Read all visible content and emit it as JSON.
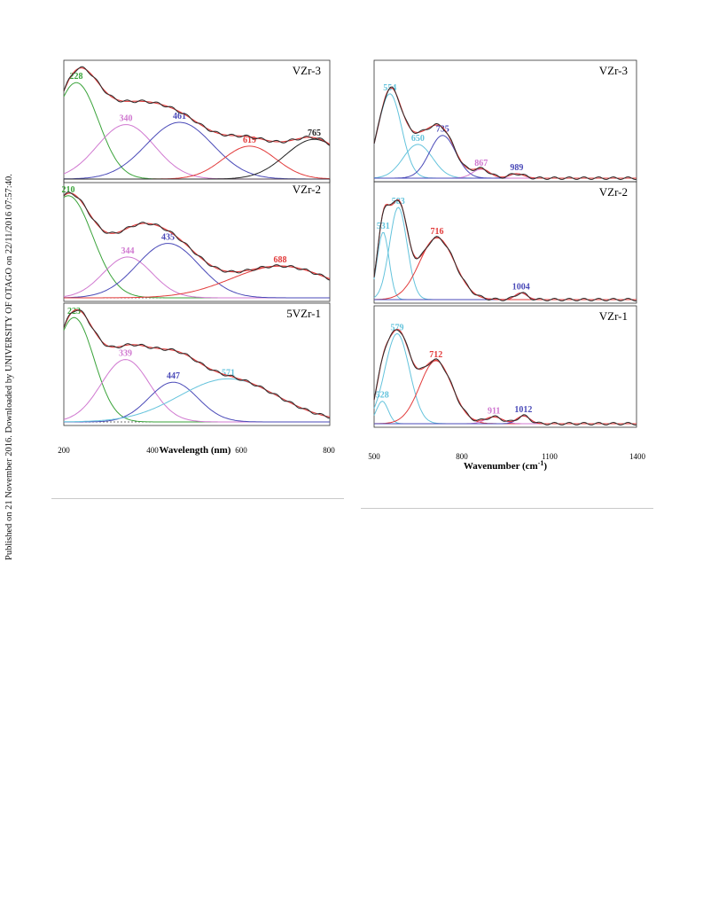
{
  "side_note": "Published on 21 November 2016. Downloaded by UNIVERSITY OF OTAGO on 22/11/2016 07:57:40.",
  "colors": {
    "data": "#2b2b2b",
    "fit": "#e23b3b",
    "green": "#3aa33a",
    "pink": "#d078d0",
    "blue": "#4a4ab8",
    "red": "#e23b3b",
    "black": "#222222",
    "cyan": "#64c3dc",
    "baseline": "#444444"
  },
  "left_panel": {
    "xlabel": "Wavelength (nm)",
    "x_ticks": [
      "200",
      "400",
      "600",
      "800"
    ],
    "x_range": [
      200,
      800
    ],
    "panels": [
      {
        "label": "VZr-3",
        "peaks": [
          {
            "center": 228,
            "label": "228",
            "color": "green",
            "amp": 0.85,
            "width": 50
          },
          {
            "center": 340,
            "label": "340",
            "color": "pink",
            "amp": 0.48,
            "width": 65
          },
          {
            "center": 461,
            "label": "461",
            "color": "blue",
            "amp": 0.5,
            "width": 75
          },
          {
            "center": 619,
            "label": "619",
            "color": "red",
            "amp": 0.29,
            "width": 60
          },
          {
            "center": 765,
            "label": "765",
            "color": "black",
            "amp": 0.35,
            "width": 65
          }
        ]
      },
      {
        "label": "VZr-2",
        "peaks": [
          {
            "center": 210,
            "label": "210",
            "color": "green",
            "amp": 0.9,
            "width": 55
          },
          {
            "center": 344,
            "label": "344",
            "color": "pink",
            "amp": 0.36,
            "width": 55
          },
          {
            "center": 435,
            "label": "435",
            "color": "blue",
            "amp": 0.48,
            "width": 70
          },
          {
            "center": 688,
            "label": "688",
            "color": "red",
            "amp": 0.28,
            "width": 110
          }
        ]
      },
      {
        "label": "5VZr-1",
        "peaks": [
          {
            "center": 223,
            "label": "223",
            "color": "green",
            "amp": 0.92,
            "width": 45
          },
          {
            "center": 339,
            "label": "339",
            "color": "pink",
            "amp": 0.55,
            "width": 55
          },
          {
            "center": 447,
            "label": "447",
            "color": "blue",
            "amp": 0.35,
            "width": 55
          },
          {
            "center": 571,
            "label": "571",
            "color": "cyan",
            "amp": 0.38,
            "width": 110
          }
        ]
      }
    ]
  },
  "right_panel": {
    "xlabel": "Wavenumber (cm",
    "xlabel_sup": "-1",
    "xlabel_close": ")",
    "x_ticks": [
      "500",
      "800",
      "1100",
      "1400"
    ],
    "x_range": [
      500,
      1400
    ],
    "panels": [
      {
        "label": "VZr-3",
        "peaks": [
          {
            "center": 554,
            "label": "554",
            "color": "cyan",
            "amp": 0.75,
            "width": 40
          },
          {
            "center": 650,
            "label": "650",
            "color": "cyan",
            "amp": 0.3,
            "width": 50
          },
          {
            "center": 735,
            "label": "735",
            "color": "blue",
            "amp": 0.38,
            "width": 45
          },
          {
            "center": 867,
            "label": "867",
            "color": "pink",
            "amp": 0.08,
            "width": 30
          },
          {
            "center": 989,
            "label": "989",
            "color": "blue",
            "amp": 0.04,
            "width": 25
          }
        ]
      },
      {
        "label": "VZr-2",
        "peaks": [
          {
            "center": 531,
            "label": "531",
            "color": "cyan",
            "amp": 0.6,
            "width": 20
          },
          {
            "center": 583,
            "label": "583",
            "color": "cyan",
            "amp": 0.82,
            "width": 30
          },
          {
            "center": 716,
            "label": "716",
            "color": "red",
            "amp": 0.55,
            "width": 60
          },
          {
            "center": 1004,
            "label": "1004",
            "color": "blue",
            "amp": 0.06,
            "width": 20
          }
        ]
      },
      {
        "label": "VZr-1",
        "peaks": [
          {
            "center": 528,
            "label": "528",
            "color": "cyan",
            "amp": 0.2,
            "width": 20
          },
          {
            "center": 579,
            "label": "579",
            "color": "cyan",
            "amp": 0.8,
            "width": 42
          },
          {
            "center": 712,
            "label": "712",
            "color": "red",
            "amp": 0.56,
            "width": 55
          },
          {
            "center": 911,
            "label": "911",
            "color": "pink",
            "amp": 0.06,
            "width": 30
          },
          {
            "center": 1012,
            "label": "1012",
            "color": "blue",
            "amp": 0.07,
            "width": 22
          }
        ]
      }
    ]
  }
}
